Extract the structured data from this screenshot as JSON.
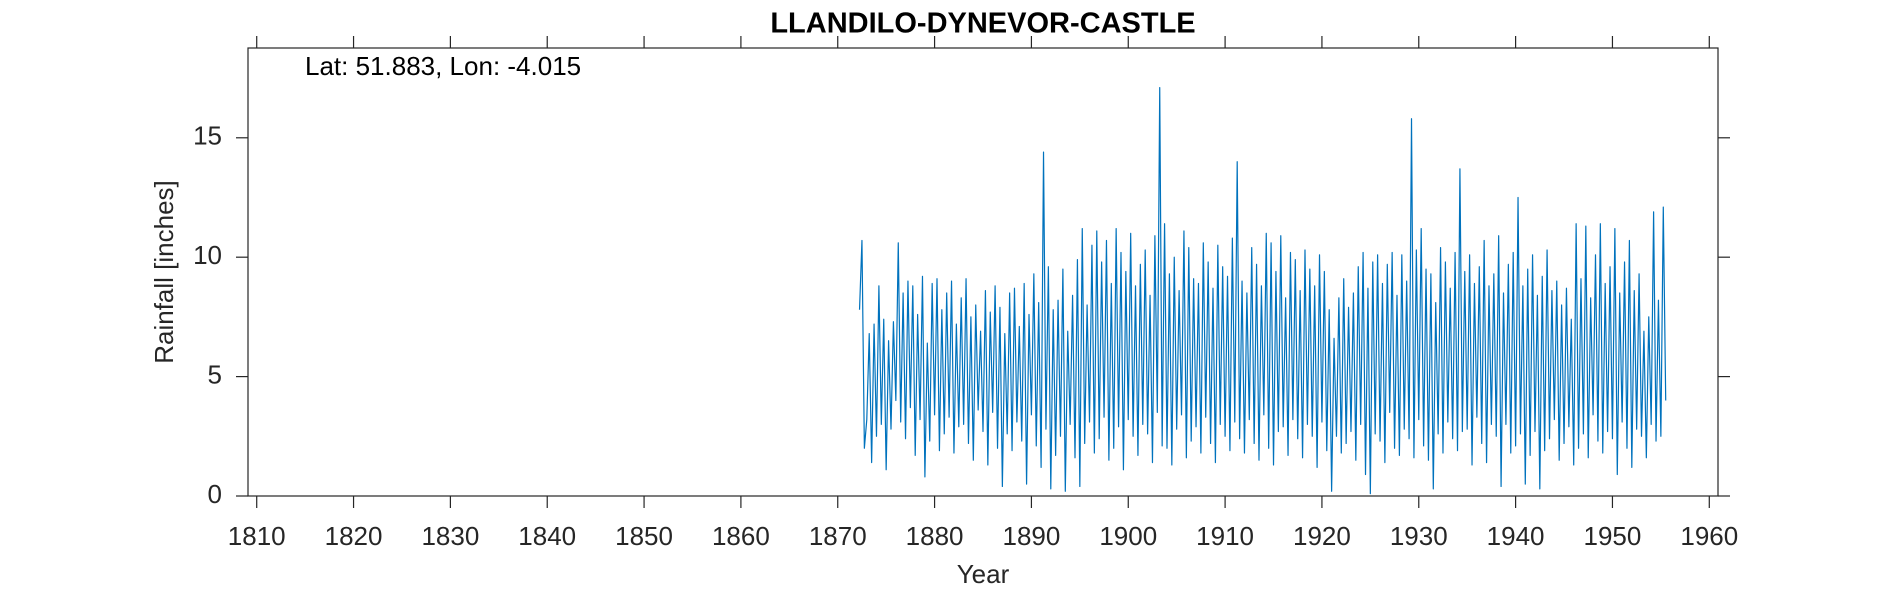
{
  "chart_data": {
    "type": "line",
    "title": "LLANDILO-DYNEVOR-CASTLE",
    "annotation": "Lat: 51.883, Lon: -4.015",
    "x_label": "Year",
    "y_label": "Rainfall [inches]",
    "xlim": [
      1809.1,
      1960.9
    ],
    "ylim": [
      0,
      18.76
    ],
    "xticks": [
      1810,
      1820,
      1830,
      1840,
      1850,
      1860,
      1870,
      1880,
      1890,
      1900,
      1910,
      1920,
      1930,
      1940,
      1950,
      1960
    ],
    "yticks": [
      0,
      5,
      10,
      15
    ],
    "grid": false,
    "series": [
      {
        "name": "Rainfall",
        "color": "#0072bd",
        "x": [
          1872.25,
          1872.5,
          1872.75,
          1873,
          1873.25,
          1873.5,
          1873.75,
          1874,
          1874.25,
          1874.5,
          1874.75,
          1875,
          1875.25,
          1875.5,
          1875.75,
          1876,
          1876.25,
          1876.5,
          1876.75,
          1877,
          1877.25,
          1877.5,
          1877.75,
          1878,
          1878.25,
          1878.5,
          1878.75,
          1879,
          1879.25,
          1879.5,
          1879.75,
          1880,
          1880.25,
          1880.5,
          1880.75,
          1881,
          1881.25,
          1881.5,
          1881.75,
          1882,
          1882.25,
          1882.5,
          1882.75,
          1883,
          1883.25,
          1883.5,
          1883.75,
          1884,
          1884.25,
          1884.5,
          1884.75,
          1885,
          1885.25,
          1885.5,
          1885.75,
          1886,
          1886.25,
          1886.5,
          1886.75,
          1887,
          1887.25,
          1887.5,
          1887.75,
          1888,
          1888.25,
          1888.5,
          1888.75,
          1889,
          1889.25,
          1889.5,
          1889.75,
          1890,
          1890.25,
          1890.5,
          1890.75,
          1891,
          1891.25,
          1891.5,
          1891.75,
          1892,
          1892.25,
          1892.5,
          1892.75,
          1893,
          1893.25,
          1893.5,
          1893.75,
          1894,
          1894.25,
          1894.5,
          1894.75,
          1895,
          1895.25,
          1895.5,
          1895.75,
          1896,
          1896.25,
          1896.5,
          1896.75,
          1897,
          1897.25,
          1897.5,
          1897.75,
          1898,
          1898.25,
          1898.5,
          1898.75,
          1899,
          1899.25,
          1899.5,
          1899.75,
          1900,
          1900.25,
          1900.5,
          1900.75,
          1901,
          1901.25,
          1901.5,
          1901.75,
          1902,
          1902.25,
          1902.5,
          1902.75,
          1903,
          1903.25,
          1903.5,
          1903.75,
          1904,
          1904.25,
          1904.5,
          1904.75,
          1905,
          1905.25,
          1905.5,
          1905.75,
          1906,
          1906.25,
          1906.5,
          1906.75,
          1907,
          1907.25,
          1907.5,
          1907.75,
          1908,
          1908.25,
          1908.5,
          1908.75,
          1909,
          1909.25,
          1909.5,
          1909.75,
          1910,
          1910.25,
          1910.5,
          1910.75,
          1911,
          1911.25,
          1911.5,
          1911.75,
          1912,
          1912.25,
          1912.5,
          1912.75,
          1913,
          1913.25,
          1913.5,
          1913.75,
          1914,
          1914.25,
          1914.5,
          1914.75,
          1915,
          1915.25,
          1915.5,
          1915.75,
          1916,
          1916.25,
          1916.5,
          1916.75,
          1917,
          1917.25,
          1917.5,
          1917.75,
          1918,
          1918.25,
          1918.5,
          1918.75,
          1919,
          1919.25,
          1919.5,
          1919.75,
          1920,
          1920.25,
          1920.5,
          1920.75,
          1921,
          1921.25,
          1921.5,
          1921.75,
          1922,
          1922.25,
          1922.5,
          1922.75,
          1923,
          1923.25,
          1923.5,
          1923.75,
          1924,
          1924.25,
          1924.5,
          1924.75,
          1925,
          1925.25,
          1925.5,
          1925.75,
          1926,
          1926.25,
          1926.5,
          1926.75,
          1927,
          1927.25,
          1927.5,
          1927.75,
          1928,
          1928.25,
          1928.5,
          1928.75,
          1929,
          1929.25,
          1929.5,
          1929.75,
          1930,
          1930.25,
          1930.5,
          1930.75,
          1931,
          1931.25,
          1931.5,
          1931.75,
          1932,
          1932.25,
          1932.5,
          1932.75,
          1933,
          1933.25,
          1933.5,
          1933.75,
          1934,
          1934.25,
          1934.5,
          1934.75,
          1935,
          1935.25,
          1935.5,
          1935.75,
          1936,
          1936.25,
          1936.5,
          1936.75,
          1937,
          1937.25,
          1937.5,
          1937.75,
          1938,
          1938.25,
          1938.5,
          1938.75,
          1939,
          1939.25,
          1939.5,
          1939.75,
          1940,
          1940.25,
          1940.5,
          1940.75,
          1941,
          1941.25,
          1941.5,
          1941.75,
          1942,
          1942.25,
          1942.5,
          1942.75,
          1943,
          1943.25,
          1943.5,
          1943.75,
          1944,
          1944.25,
          1944.5,
          1944.75,
          1945,
          1945.25,
          1945.5,
          1945.75,
          1946,
          1946.25,
          1946.5,
          1946.75,
          1947,
          1947.25,
          1947.5,
          1947.75,
          1948,
          1948.25,
          1948.5,
          1948.75,
          1949,
          1949.25,
          1949.5,
          1949.75,
          1950,
          1950.25,
          1950.5,
          1950.75,
          1951,
          1951.25,
          1951.5,
          1951.75,
          1952,
          1952.25,
          1952.5,
          1952.75,
          1953,
          1953.25,
          1953.5,
          1953.75,
          1954,
          1954.25,
          1954.5,
          1954.75,
          1955,
          1955.25,
          1955.5
        ],
        "values": [
          7.8,
          10.7,
          2.0,
          3.2,
          6.8,
          1.4,
          7.2,
          2.5,
          8.8,
          3.0,
          7.4,
          1.1,
          6.5,
          2.8,
          7.3,
          4.0,
          10.6,
          3.1,
          8.5,
          2.4,
          9.0,
          3.7,
          8.8,
          1.7,
          7.6,
          3.2,
          9.2,
          0.8,
          6.4,
          2.3,
          8.9,
          3.4,
          9.1,
          1.9,
          7.8,
          2.6,
          8.5,
          3.3,
          9.0,
          1.8,
          7.2,
          2.9,
          8.3,
          3.0,
          9.1,
          2.2,
          7.5,
          1.5,
          8.0,
          3.6,
          6.9,
          2.7,
          8.6,
          1.3,
          7.7,
          3.5,
          8.8,
          2.0,
          7.9,
          0.4,
          6.8,
          2.6,
          8.5,
          1.9,
          8.7,
          3.1,
          7.1,
          2.3,
          8.9,
          0.5,
          7.6,
          3.4,
          9.3,
          2.1,
          8.1,
          1.2,
          14.4,
          2.8,
          9.6,
          0.3,
          7.8,
          1.7,
          8.2,
          2.5,
          9.5,
          0.2,
          6.9,
          3.0,
          8.4,
          1.6,
          9.9,
          0.4,
          11.2,
          2.2,
          8.0,
          3.1,
          10.5,
          1.8,
          11.1,
          2.4,
          9.8,
          3.3,
          10.7,
          1.5,
          8.9,
          2.0,
          11.2,
          2.9,
          10.2,
          1.1,
          9.4,
          3.2,
          11.0,
          2.5,
          8.8,
          1.7,
          9.7,
          3.0,
          10.3,
          2.6,
          8.4,
          1.4,
          10.9,
          3.5,
          17.1,
          2.1,
          11.4,
          2.0,
          9.3,
          1.3,
          10.0,
          2.8,
          8.6,
          3.4,
          11.1,
          1.6,
          10.4,
          2.3,
          9.1,
          2.9,
          8.9,
          1.8,
          10.6,
          3.3,
          9.8,
          2.2,
          8.7,
          1.4,
          10.5,
          3.0,
          9.6,
          2.5,
          9.2,
          1.9,
          10.8,
          3.1,
          14.0,
          2.4,
          9.0,
          1.8,
          8.5,
          3.2,
          10.4,
          2.2,
          9.7,
          1.5,
          8.8,
          3.4,
          11.0,
          2.0,
          10.6,
          1.3,
          9.4,
          2.7,
          10.9,
          2.9,
          8.3,
          1.7,
          10.2,
          3.2,
          9.9,
          2.4,
          8.6,
          1.6,
          10.3,
          3.0,
          9.5,
          2.5,
          8.8,
          1.2,
          10.1,
          3.1,
          9.4,
          1.9,
          7.8,
          0.2,
          6.6,
          2.5,
          8.3,
          1.8,
          9.1,
          2.2,
          7.9,
          2.7,
          8.5,
          1.5,
          9.6,
          3.0,
          10.2,
          0.9,
          8.7,
          0.1,
          9.8,
          2.6,
          10.1,
          2.3,
          8.9,
          1.4,
          9.7,
          3.5,
          10.2,
          2.0,
          8.4,
          1.7,
          10.1,
          2.8,
          9.0,
          2.4,
          15.8,
          1.6,
          10.3,
          3.2,
          11.2,
          2.1,
          9.5,
          1.5,
          9.3,
          0.3,
          8.1,
          2.6,
          10.4,
          1.8,
          9.8,
          3.1,
          8.7,
          2.4,
          10.2,
          1.9,
          13.7,
          2.7,
          9.4,
          2.8,
          10.1,
          1.3,
          8.9,
          3.3,
          9.6,
          2.2,
          10.7,
          1.4,
          8.8,
          3.0,
          9.3,
          2.5,
          10.9,
          0.4,
          8.5,
          3.0,
          9.7,
          1.8,
          10.2,
          2.1,
          12.5,
          2.6,
          8.8,
          0.5,
          9.5,
          1.7,
          10.1,
          2.7,
          8.4,
          0.3,
          9.2,
          1.9,
          10.3,
          2.4,
          8.6,
          3.2,
          9.0,
          1.5,
          8.0,
          2.2,
          8.7,
          2.9,
          7.4,
          1.3,
          11.4,
          2.0,
          9.1,
          2.6,
          11.3,
          1.6,
          8.3,
          3.4,
          10.1,
          2.3,
          11.4,
          1.8,
          8.9,
          2.7,
          9.6,
          2.4,
          11.2,
          0.9,
          8.5,
          3.1,
          9.8,
          2.0,
          10.7,
          1.2,
          8.6,
          2.8,
          9.3,
          2.5,
          6.9,
          1.6,
          7.5,
          3.0,
          11.9,
          2.3,
          8.2,
          2.5,
          12.1,
          4.0
        ]
      }
    ]
  }
}
